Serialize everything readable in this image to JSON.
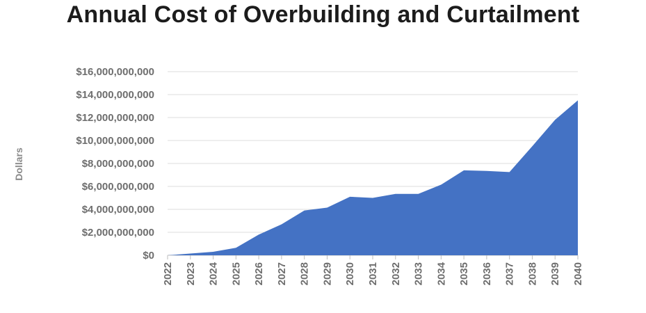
{
  "chart_data": {
    "type": "area",
    "title": "Annual Cost of Overbuilding and Curtailment",
    "xlabel": "",
    "ylabel": "Dollars",
    "ylim": [
      0,
      16000000000
    ],
    "yticks": [
      0,
      2000000000,
      4000000000,
      6000000000,
      8000000000,
      10000000000,
      12000000000,
      14000000000,
      16000000000
    ],
    "ytick_labels": [
      "$0",
      "$2,000,000,000",
      "$4,000,000,000",
      "$6,000,000,000",
      "$8,000,000,000",
      "$10,000,000,000",
      "$12,000,000,000",
      "$14,000,000,000",
      "$16,000,000,000"
    ],
    "categories": [
      "2022",
      "2023",
      "2024",
      "2025",
      "2026",
      "2027",
      "2028",
      "2029",
      "2030",
      "2031",
      "2032",
      "2033",
      "2034",
      "2035",
      "2036",
      "2037",
      "2038",
      "2039",
      "2040"
    ],
    "values": [
      0,
      150000000,
      300000000,
      650000000,
      1800000000,
      2700000000,
      3900000000,
      4150000000,
      5100000000,
      5000000000,
      5350000000,
      5350000000,
      6150000000,
      7400000000,
      7350000000,
      7250000000,
      9500000000,
      11800000000,
      13500000000
    ],
    "grid": true,
    "color": "#4472c4"
  }
}
